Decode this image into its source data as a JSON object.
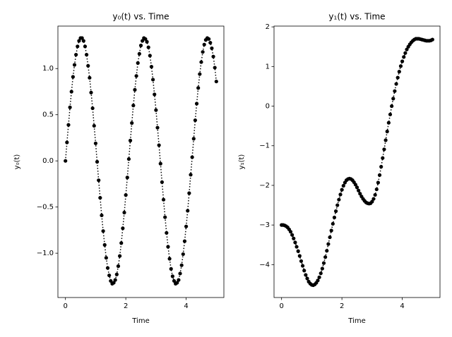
{
  "chart_data": [
    {
      "type": "line",
      "title": "y₀(t) vs. Time",
      "xlabel": "Time",
      "ylabel": "y₀(t)",
      "xlim": [
        -0.25,
        5.25
      ],
      "ylim": [
        -1.48,
        1.46
      ],
      "xticks": [
        0,
        2,
        4
      ],
      "yticks": [
        {
          "value": -1.0,
          "label": "−1.0"
        },
        {
          "value": -0.5,
          "label": "−0.5"
        },
        {
          "value": 0,
          "label": "0.0"
        },
        {
          "value": 0.5,
          "label": "0.5"
        },
        {
          "value": 1.0,
          "label": "1.0"
        }
      ],
      "x": [
        0,
        0.05,
        0.1,
        0.15,
        0.2,
        0.25,
        0.3,
        0.35,
        0.4,
        0.45,
        0.5,
        0.55,
        0.6,
        0.65,
        0.7,
        0.75,
        0.8,
        0.85,
        0.9,
        0.95,
        1,
        1.05,
        1.1,
        1.15,
        1.2,
        1.25,
        1.3,
        1.35,
        1.4,
        1.45,
        1.5,
        1.55,
        1.6,
        1.65,
        1.7,
        1.75,
        1.8,
        1.85,
        1.9,
        1.95,
        2,
        2.05,
        2.1,
        2.15,
        2.2,
        2.25,
        2.3,
        2.35,
        2.4,
        2.45,
        2.5,
        2.55,
        2.6,
        2.65,
        2.7,
        2.75,
        2.8,
        2.85,
        2.9,
        2.95,
        3,
        3.05,
        3.1,
        3.15,
        3.2,
        3.25,
        3.3,
        3.35,
        3.4,
        3.45,
        3.5,
        3.55,
        3.6,
        3.65,
        3.7,
        3.75,
        3.8,
        3.85,
        3.9,
        3.95,
        4,
        4.05,
        4.1,
        4.15,
        4.2,
        4.25,
        4.3,
        4.35,
        4.4,
        4.45,
        4.5,
        4.55,
        4.6,
        4.65,
        4.7,
        4.75,
        4.8,
        4.85,
        4.9,
        4.95,
        5
      ],
      "series": [
        {
          "name": "y0",
          "color": "#000000",
          "values": [
            0,
            0.2,
            0.39,
            0.58,
            0.75,
            0.91,
            1.04,
            1.15,
            1.24,
            1.3,
            1.33,
            1.33,
            1.3,
            1.24,
            1.15,
            1.03,
            0.9,
            0.74,
            0.57,
            0.38,
            0.19,
            -0.01,
            -0.21,
            -0.4,
            -0.59,
            -0.76,
            -0.91,
            -1.05,
            -1.16,
            -1.24,
            -1.3,
            -1.33,
            -1.32,
            -1.29,
            -1.23,
            -1.14,
            -1.03,
            -0.89,
            -0.73,
            -0.56,
            -0.37,
            -0.18,
            0.02,
            0.22,
            0.41,
            0.6,
            0.77,
            0.92,
            1.06,
            1.16,
            1.25,
            1.3,
            1.33,
            1.32,
            1.29,
            1.23,
            1.14,
            1.02,
            0.88,
            0.72,
            0.55,
            0.36,
            0.17,
            -0.03,
            -0.23,
            -0.42,
            -0.61,
            -0.78,
            -0.93,
            -1.06,
            -1.17,
            -1.25,
            -1.3,
            -1.33,
            -1.32,
            -1.29,
            -1.22,
            -1.13,
            -1.01,
            -0.87,
            -0.71,
            -0.54,
            -0.35,
            -0.15,
            0.04,
            0.24,
            0.44,
            0.62,
            0.79,
            0.94,
            1.07,
            1.18,
            1.26,
            1.31,
            1.33,
            1.32,
            1.28,
            1.22,
            1.13,
            1.01,
            0.86
          ]
        }
      ]
    },
    {
      "type": "line",
      "title": "y₁(t) vs. Time",
      "xlabel": "Time",
      "ylabel": "y₁(t)",
      "xlim": [
        -0.25,
        5.25
      ],
      "ylim": [
        -4.83,
        2.02
      ],
      "xticks": [
        0,
        2,
        4
      ],
      "yticks": [
        {
          "value": -4,
          "label": "−4"
        },
        {
          "value": -3,
          "label": "−3"
        },
        {
          "value": -2,
          "label": "−2"
        },
        {
          "value": -1,
          "label": "−1"
        },
        0,
        1,
        2
      ],
      "x": [
        0,
        0.05,
        0.1,
        0.15,
        0.2,
        0.25,
        0.3,
        0.35,
        0.4,
        0.45,
        0.5,
        0.55,
        0.6,
        0.65,
        0.7,
        0.75,
        0.8,
        0.85,
        0.9,
        0.95,
        1,
        1.05,
        1.1,
        1.15,
        1.2,
        1.25,
        1.3,
        1.35,
        1.4,
        1.45,
        1.5,
        1.55,
        1.6,
        1.65,
        1.7,
        1.75,
        1.8,
        1.85,
        1.9,
        1.95,
        2,
        2.05,
        2.1,
        2.15,
        2.2,
        2.25,
        2.3,
        2.35,
        2.4,
        2.45,
        2.5,
        2.55,
        2.6,
        2.65,
        2.7,
        2.75,
        2.8,
        2.85,
        2.9,
        2.95,
        3,
        3.05,
        3.1,
        3.15,
        3.2,
        3.25,
        3.3,
        3.35,
        3.4,
        3.45,
        3.5,
        3.55,
        3.6,
        3.65,
        3.7,
        3.75,
        3.8,
        3.85,
        3.9,
        3.95,
        4,
        4.05,
        4.1,
        4.15,
        4.2,
        4.25,
        4.3,
        4.35,
        4.4,
        4.45,
        4.5,
        4.55,
        4.6,
        4.65,
        4.7,
        4.75,
        4.8,
        4.85,
        4.9,
        4.95,
        5
      ],
      "series": [
        {
          "name": "y1",
          "color": "#000000",
          "values": [
            -3,
            -3,
            -3.01,
            -3.03,
            -3.06,
            -3.11,
            -3.17,
            -3.25,
            -3.34,
            -3.44,
            -3.55,
            -3.66,
            -3.78,
            -3.91,
            -4.03,
            -4.15,
            -4.26,
            -4.35,
            -4.43,
            -4.48,
            -4.51,
            -4.52,
            -4.5,
            -4.46,
            -4.4,
            -4.32,
            -4.22,
            -4.1,
            -3.96,
            -3.81,
            -3.65,
            -3.48,
            -3.31,
            -3.14,
            -2.97,
            -2.81,
            -2.65,
            -2.5,
            -2.36,
            -2.23,
            -2.11,
            -2.01,
            -1.93,
            -1.87,
            -1.84,
            -1.83,
            -1.84,
            -1.87,
            -1.92,
            -1.98,
            -2.05,
            -2.13,
            -2.21,
            -2.28,
            -2.34,
            -2.39,
            -2.43,
            -2.45,
            -2.46,
            -2.45,
            -2.41,
            -2.34,
            -2.24,
            -2.1,
            -1.93,
            -1.74,
            -1.53,
            -1.31,
            -1.09,
            -0.86,
            -0.64,
            -0.42,
            -0.21,
            0,
            0.19,
            0.38,
            0.56,
            0.72,
            0.87,
            1.01,
            1.13,
            1.24,
            1.34,
            1.43,
            1.5,
            1.56,
            1.61,
            1.65,
            1.68,
            1.7,
            1.7,
            1.7,
            1.69,
            1.68,
            1.67,
            1.66,
            1.65,
            1.65,
            1.65,
            1.66,
            1.68
          ]
        }
      ]
    }
  ]
}
